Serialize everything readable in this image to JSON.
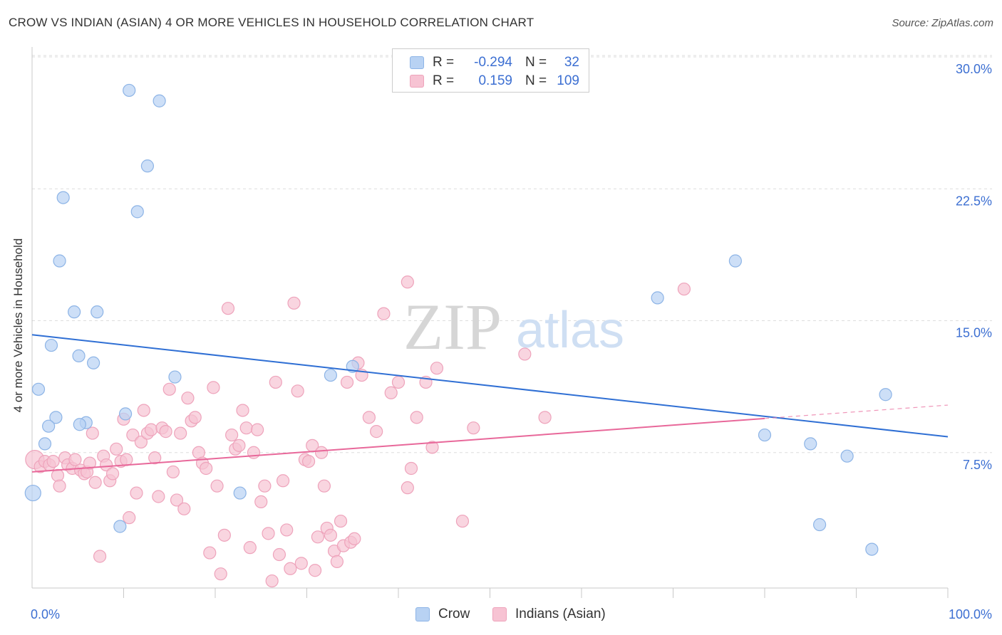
{
  "title": "CROW VS INDIAN (ASIAN) 4 OR MORE VEHICLES IN HOUSEHOLD CORRELATION CHART",
  "source": "Source: ZipAtlas.com",
  "watermark": {
    "zip": "ZIP",
    "atlas": "atlas"
  },
  "legend_top": {
    "rows": [
      {
        "r_label": "R =",
        "r_value": "-0.294",
        "n_label": "N =",
        "n_value": "32"
      },
      {
        "r_label": "R =",
        "r_value": "0.159",
        "n_label": "N =",
        "n_value": "109"
      }
    ]
  },
  "legend_bottom": {
    "series1": "Crow",
    "series2": "Indians (Asian)"
  },
  "colors": {
    "crow_fill": "#b8d2f3",
    "crow_stroke": "#8db4e6",
    "crow_line": "#2f6fd4",
    "indian_fill": "#f7c3d3",
    "indian_stroke": "#eea3bb",
    "indian_line": "#e8689a",
    "axis_text": "#3c6fd2",
    "grid": "#dddddd"
  },
  "chart_data": {
    "type": "scatter",
    "title": "CROW VS INDIAN (ASIAN) 4 OR MORE VEHICLES IN HOUSEHOLD CORRELATION CHART",
    "xlabel": "",
    "ylabel": "4 or more Vehicles in Household",
    "xlim": [
      0,
      100
    ],
    "ylim": [
      0,
      31
    ],
    "x_tick_labels": [
      {
        "value": 0,
        "label": "0.0%"
      },
      {
        "value": 100,
        "label": "100.0%"
      }
    ],
    "y_ticks": [
      {
        "value": 7.5,
        "label": "7.5%"
      },
      {
        "value": 15.0,
        "label": "15.0%"
      },
      {
        "value": 22.5,
        "label": "22.5%"
      },
      {
        "value": 30.0,
        "label": "30.0%"
      }
    ],
    "x_minor_ticks": [
      10,
      20,
      30,
      40,
      50,
      60,
      70,
      80,
      90,
      100
    ],
    "series": [
      {
        "name": "Crow",
        "r": -0.294,
        "n": 32,
        "trend": {
          "x_start": 0,
          "y_start": 14.2,
          "x_end": 100,
          "y_end": 8.4,
          "dashed_from": null
        },
        "points": [
          {
            "x": 10.6,
            "y": 28.1
          },
          {
            "x": 13.9,
            "y": 27.5
          },
          {
            "x": 12.6,
            "y": 23.8
          },
          {
            "x": 3.4,
            "y": 22.0
          },
          {
            "x": 11.5,
            "y": 21.2
          },
          {
            "x": 3.0,
            "y": 18.4
          },
          {
            "x": 4.6,
            "y": 15.5
          },
          {
            "x": 7.1,
            "y": 15.5
          },
          {
            "x": 2.1,
            "y": 13.6
          },
          {
            "x": 5.1,
            "y": 13.0
          },
          {
            "x": 6.7,
            "y": 12.6
          },
          {
            "x": 0.7,
            "y": 11.1
          },
          {
            "x": 15.6,
            "y": 11.8
          },
          {
            "x": 2.6,
            "y": 9.5
          },
          {
            "x": 1.8,
            "y": 9.0
          },
          {
            "x": 5.9,
            "y": 9.2
          },
          {
            "x": 5.2,
            "y": 9.1
          },
          {
            "x": 10.2,
            "y": 9.7
          },
          {
            "x": 1.4,
            "y": 8.0
          },
          {
            "x": 0.1,
            "y": 5.2
          },
          {
            "x": 22.7,
            "y": 5.2
          },
          {
            "x": 9.6,
            "y": 3.3
          },
          {
            "x": 32.6,
            "y": 11.9
          },
          {
            "x": 35.0,
            "y": 12.4
          },
          {
            "x": 76.8,
            "y": 18.4
          },
          {
            "x": 68.3,
            "y": 16.3
          },
          {
            "x": 93.2,
            "y": 10.8
          },
          {
            "x": 80.0,
            "y": 8.5
          },
          {
            "x": 85.0,
            "y": 8.0
          },
          {
            "x": 89.0,
            "y": 7.3
          },
          {
            "x": 86.0,
            "y": 3.4
          },
          {
            "x": 91.7,
            "y": 2.0
          }
        ]
      },
      {
        "name": "Indians (Asian)",
        "r": 0.159,
        "n": 109,
        "trend": {
          "x_start": 0,
          "y_start": 6.4,
          "x_end": 100,
          "y_end": 10.2,
          "dashed_from": 80
        },
        "points": [
          {
            "x": 0.3,
            "y": 7.1
          },
          {
            "x": 0.9,
            "y": 6.7
          },
          {
            "x": 1.4,
            "y": 7.0
          },
          {
            "x": 1.9,
            "y": 6.8
          },
          {
            "x": 2.3,
            "y": 7.0
          },
          {
            "x": 2.8,
            "y": 6.2
          },
          {
            "x": 3.0,
            "y": 5.6
          },
          {
            "x": 3.6,
            "y": 7.2
          },
          {
            "x": 3.9,
            "y": 6.8
          },
          {
            "x": 4.4,
            "y": 6.6
          },
          {
            "x": 4.7,
            "y": 7.1
          },
          {
            "x": 5.3,
            "y": 6.5
          },
          {
            "x": 5.7,
            "y": 6.3
          },
          {
            "x": 6.0,
            "y": 6.4
          },
          {
            "x": 6.3,
            "y": 6.9
          },
          {
            "x": 6.6,
            "y": 8.6
          },
          {
            "x": 6.9,
            "y": 5.8
          },
          {
            "x": 7.4,
            "y": 1.6
          },
          {
            "x": 7.8,
            "y": 7.3
          },
          {
            "x": 8.1,
            "y": 6.8
          },
          {
            "x": 8.5,
            "y": 5.9
          },
          {
            "x": 8.8,
            "y": 6.3
          },
          {
            "x": 9.2,
            "y": 7.7
          },
          {
            "x": 9.7,
            "y": 7.0
          },
          {
            "x": 10.0,
            "y": 9.4
          },
          {
            "x": 10.3,
            "y": 7.1
          },
          {
            "x": 10.6,
            "y": 3.8
          },
          {
            "x": 11.0,
            "y": 8.5
          },
          {
            "x": 11.4,
            "y": 5.2
          },
          {
            "x": 11.9,
            "y": 8.1
          },
          {
            "x": 12.2,
            "y": 9.9
          },
          {
            "x": 12.6,
            "y": 8.6
          },
          {
            "x": 13.0,
            "y": 8.8
          },
          {
            "x": 13.4,
            "y": 7.2
          },
          {
            "x": 13.8,
            "y": 5.0
          },
          {
            "x": 14.2,
            "y": 8.9
          },
          {
            "x": 14.6,
            "y": 8.7
          },
          {
            "x": 15.0,
            "y": 11.1
          },
          {
            "x": 15.4,
            "y": 6.4
          },
          {
            "x": 15.8,
            "y": 4.8
          },
          {
            "x": 16.2,
            "y": 8.6
          },
          {
            "x": 16.6,
            "y": 4.3
          },
          {
            "x": 17.0,
            "y": 10.6
          },
          {
            "x": 17.4,
            "y": 9.3
          },
          {
            "x": 17.8,
            "y": 9.5
          },
          {
            "x": 18.2,
            "y": 7.5
          },
          {
            "x": 18.6,
            "y": 6.9
          },
          {
            "x": 19.0,
            "y": 6.6
          },
          {
            "x": 19.4,
            "y": 1.8
          },
          {
            "x": 19.8,
            "y": 11.2
          },
          {
            "x": 20.2,
            "y": 5.6
          },
          {
            "x": 20.6,
            "y": 0.6
          },
          {
            "x": 21.0,
            "y": 2.8
          },
          {
            "x": 21.4,
            "y": 15.7
          },
          {
            "x": 21.8,
            "y": 8.5
          },
          {
            "x": 22.2,
            "y": 7.7
          },
          {
            "x": 22.6,
            "y": 7.9
          },
          {
            "x": 23.0,
            "y": 9.9
          },
          {
            "x": 23.4,
            "y": 8.9
          },
          {
            "x": 23.8,
            "y": 2.1
          },
          {
            "x": 24.2,
            "y": 7.5
          },
          {
            "x": 24.6,
            "y": 8.8
          },
          {
            "x": 25.0,
            "y": 4.7
          },
          {
            "x": 25.4,
            "y": 5.6
          },
          {
            "x": 25.8,
            "y": 2.9
          },
          {
            "x": 26.2,
            "y": 0.2
          },
          {
            "x": 26.6,
            "y": 11.5
          },
          {
            "x": 27.0,
            "y": 1.7
          },
          {
            "x": 27.4,
            "y": 5.9
          },
          {
            "x": 27.8,
            "y": 3.1
          },
          {
            "x": 28.2,
            "y": 0.9
          },
          {
            "x": 28.6,
            "y": 16.0
          },
          {
            "x": 29.0,
            "y": 11.0
          },
          {
            "x": 29.4,
            "y": 1.2
          },
          {
            "x": 29.8,
            "y": 7.1
          },
          {
            "x": 30.2,
            "y": 7.0
          },
          {
            "x": 30.6,
            "y": 7.9
          },
          {
            "x": 30.9,
            "y": 0.8
          },
          {
            "x": 31.2,
            "y": 2.7
          },
          {
            "x": 31.6,
            "y": 7.5
          },
          {
            "x": 31.9,
            "y": 5.6
          },
          {
            "x": 32.2,
            "y": 3.2
          },
          {
            "x": 32.6,
            "y": 2.8
          },
          {
            "x": 33.0,
            "y": 1.9
          },
          {
            "x": 33.3,
            "y": 1.3
          },
          {
            "x": 33.7,
            "y": 3.6
          },
          {
            "x": 34.0,
            "y": 2.2
          },
          {
            "x": 34.4,
            "y": 11.5
          },
          {
            "x": 34.8,
            "y": 2.4
          },
          {
            "x": 35.2,
            "y": 2.6
          },
          {
            "x": 35.6,
            "y": 12.6
          },
          {
            "x": 36.0,
            "y": 11.9
          },
          {
            "x": 36.8,
            "y": 9.5
          },
          {
            "x": 37.6,
            "y": 8.7
          },
          {
            "x": 38.4,
            "y": 15.4
          },
          {
            "x": 39.2,
            "y": 10.9
          },
          {
            "x": 40.0,
            "y": 11.5
          },
          {
            "x": 41.0,
            "y": 5.5
          },
          {
            "x": 41.4,
            "y": 6.6
          },
          {
            "x": 41.0,
            "y": 17.2
          },
          {
            "x": 42.0,
            "y": 9.5
          },
          {
            "x": 43.0,
            "y": 11.5
          },
          {
            "x": 43.7,
            "y": 7.8
          },
          {
            "x": 44.2,
            "y": 12.3
          },
          {
            "x": 47.0,
            "y": 3.6
          },
          {
            "x": 48.2,
            "y": 8.9
          },
          {
            "x": 53.8,
            "y": 13.1
          },
          {
            "x": 56.0,
            "y": 9.5
          },
          {
            "x": 71.2,
            "y": 16.8
          }
        ]
      }
    ]
  }
}
